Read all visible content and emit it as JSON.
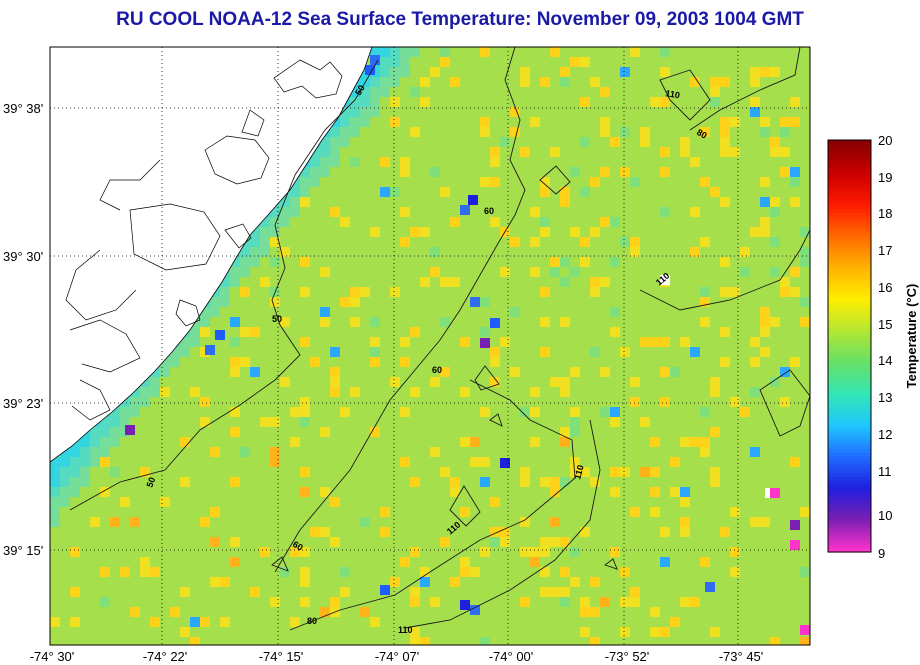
{
  "title": "RU COOL  NOAA-12  Sea Surface Temperature:  November 09, 2003 1004 GMT",
  "colorbar": {
    "label": "Temperature (°C)",
    "ticks": [
      "20",
      "19",
      "18",
      "17",
      "16",
      "15",
      "14",
      "13",
      "12",
      "11",
      "10",
      "9"
    ],
    "min": 9,
    "max": 20,
    "colors": [
      "#ff33cc",
      "#7a1fb3",
      "#1f1fdf",
      "#1f6cff",
      "#1fc8ff",
      "#33e6b3",
      "#66e066",
      "#b3e633",
      "#ffee00",
      "#ffb300",
      "#ff6a00",
      "#ff1a00",
      "#cc0000",
      "#8a0000"
    ]
  },
  "axes": {
    "lon_ticks": [
      "-74° 30'",
      "-74° 22'",
      "-74° 15'",
      "-74° 07'",
      "-74° 00'",
      "-73° 52'",
      "-73° 45'"
    ],
    "lat_ticks": [
      "39° 38'",
      "39° 30'",
      "39° 23'",
      "39° 15'"
    ],
    "grid": "dotted"
  },
  "isobaths": {
    "labels": [
      "50",
      "50",
      "50",
      "60",
      "60",
      "60",
      "80",
      "80",
      "110",
      "110",
      "110",
      "110",
      "110"
    ]
  },
  "colors": {
    "land": "#ffffff",
    "ocean": "#a8e04a",
    "title": "#1a1aa6"
  }
}
